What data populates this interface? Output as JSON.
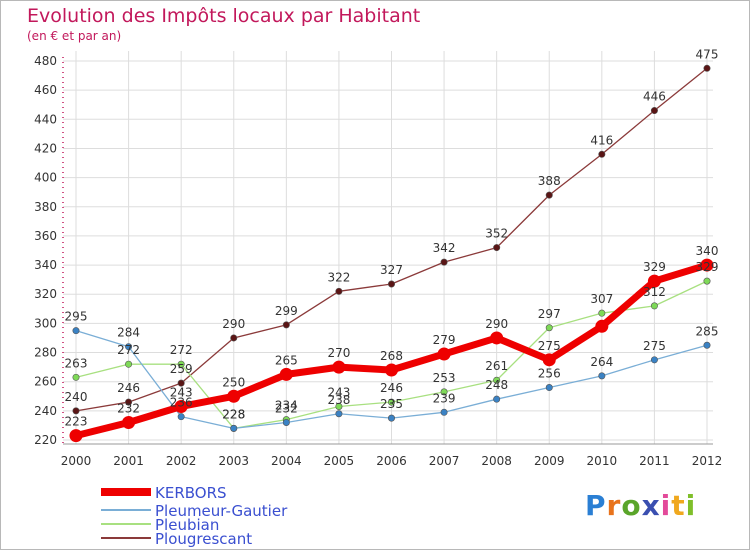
{
  "title": "Evolution des Impôts locaux par Habitant",
  "subtitle": "(en € et par an)",
  "logo": "Proxiti",
  "colors": {
    "title": "#c2185b",
    "grid": "#dddddd",
    "axis": "#c2185b",
    "logo_letters": [
      "#2a7fd4",
      "#e8731c",
      "#5aa52a",
      "#3a4fb0",
      "#e34a9a",
      "#f0a81e",
      "#7fbf2a"
    ]
  },
  "chart_data": {
    "type": "line",
    "title": "Evolution des Impôts locaux par Habitant",
    "subtitle": "(en € et par an)",
    "xlabel": "",
    "ylabel": "",
    "ylim": [
      220,
      480
    ],
    "y_ticks": [
      220,
      240,
      260,
      280,
      300,
      320,
      340,
      360,
      380,
      400,
      420,
      440,
      460,
      480
    ],
    "grid": true,
    "legend_position": "bottom-left",
    "categories": [
      "2000",
      "2001",
      "2002",
      "2003",
      "2004",
      "2005",
      "2006",
      "2007",
      "2008",
      "2009",
      "2010",
      "2011",
      "2012"
    ],
    "series": [
      {
        "name": "KERBORS",
        "color": "#ee0000",
        "marker": "#ee0000",
        "width": 7,
        "values": [
          223,
          232,
          243,
          250,
          265,
          270,
          268,
          279,
          290,
          275,
          298,
          329,
          340
        ]
      },
      {
        "name": "Pleumeur-Gautier",
        "color": "#7aaed6",
        "marker": "#3a82c4",
        "width": 1.3,
        "values": [
          295,
          284,
          236,
          228,
          232,
          238,
          235,
          239,
          248,
          256,
          264,
          275,
          285
        ]
      },
      {
        "name": "Pleubian",
        "color": "#a8e080",
        "marker": "#7ed957",
        "width": 1.3,
        "values": [
          263,
          272,
          272,
          228,
          234,
          243,
          246,
          253,
          261,
          297,
          307,
          312,
          329
        ]
      },
      {
        "name": "Plougrescant",
        "color": "#8b3a3a",
        "marker": "#5a1515",
        "width": 1.3,
        "values": [
          240,
          246,
          259,
          290,
          299,
          322,
          327,
          342,
          352,
          388,
          416,
          446,
          475
        ]
      }
    ],
    "data_labels": [
      [
        "223",
        "232",
        "243",
        "250",
        "265",
        "270",
        "268",
        "279",
        "290",
        "275",
        "",
        "329",
        "340"
      ],
      [
        "295",
        "284",
        "236",
        "228",
        "232",
        "238",
        "235",
        "239",
        "248",
        "256",
        "264",
        "275",
        "285"
      ],
      [
        "263",
        "272",
        "272",
        "228",
        "234",
        "243",
        "246",
        "253",
        "261",
        "297",
        "307",
        "312",
        "329"
      ],
      [
        "240",
        "246",
        "259",
        "290",
        "299",
        "322",
        "327",
        "342",
        "352",
        "388",
        "416",
        "446",
        "475"
      ]
    ]
  }
}
